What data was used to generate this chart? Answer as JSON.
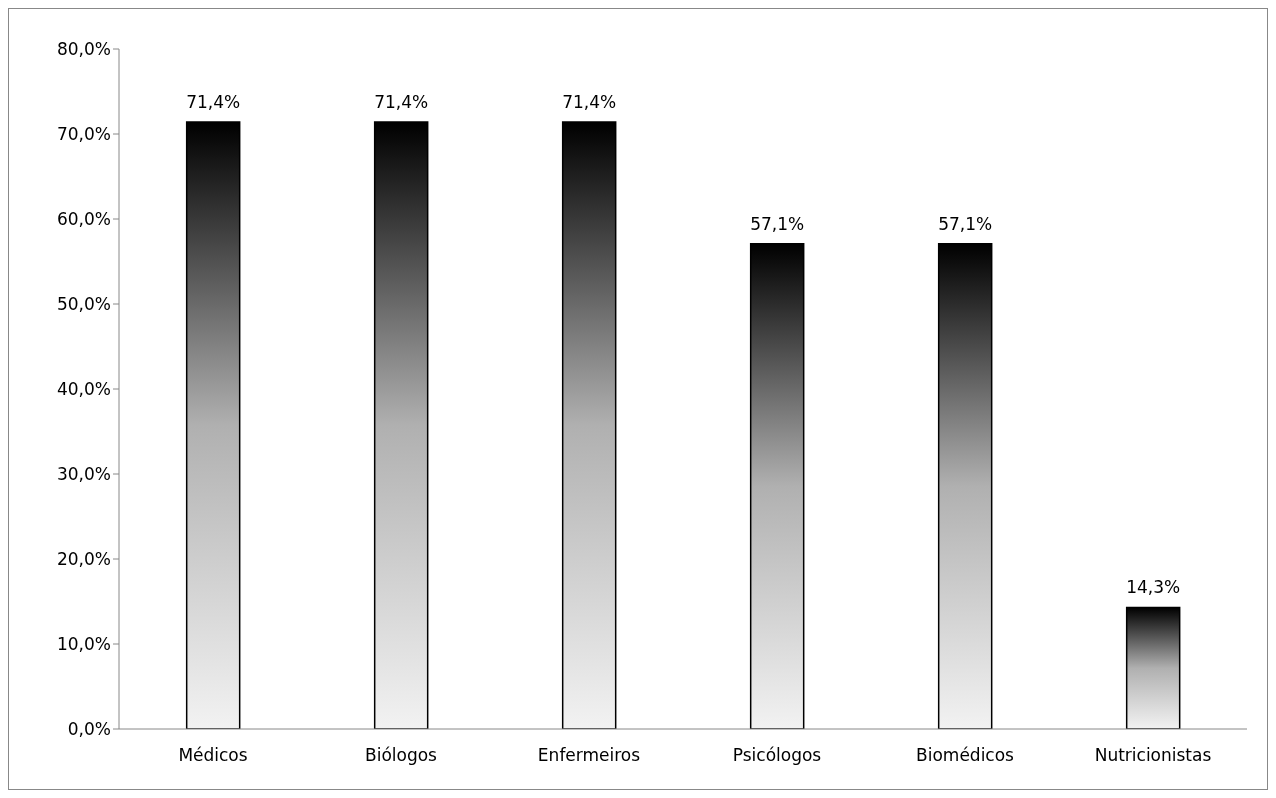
{
  "chart_data": {
    "type": "bar",
    "categories": [
      "Médicos",
      "Biólogos",
      "Enfermeiros",
      "Psicólogos",
      "Biomédicos",
      "Nutricionistas"
    ],
    "values": [
      71.4,
      71.4,
      71.4,
      57.1,
      57.1,
      14.3
    ],
    "value_labels": [
      "71,4%",
      "71,4%",
      "71,4%",
      "57,1%",
      "57,1%",
      "14,3%"
    ],
    "color": "#000000",
    "ylim": [
      0,
      80
    ],
    "yticks": [
      {
        "value": 0,
        "label": "0,0%"
      },
      {
        "value": 10,
        "label": "10,0%"
      },
      {
        "value": 20,
        "label": "20,0%"
      },
      {
        "value": 30,
        "label": "30,0%"
      },
      {
        "value": 40,
        "label": "40,0%"
      },
      {
        "value": 50,
        "label": "50,0%"
      },
      {
        "value": 60,
        "label": "60,0%"
      },
      {
        "value": 70,
        "label": "70,0%"
      },
      {
        "value": 80,
        "label": "80,0%"
      }
    ],
    "grid": false,
    "legend": false
  }
}
